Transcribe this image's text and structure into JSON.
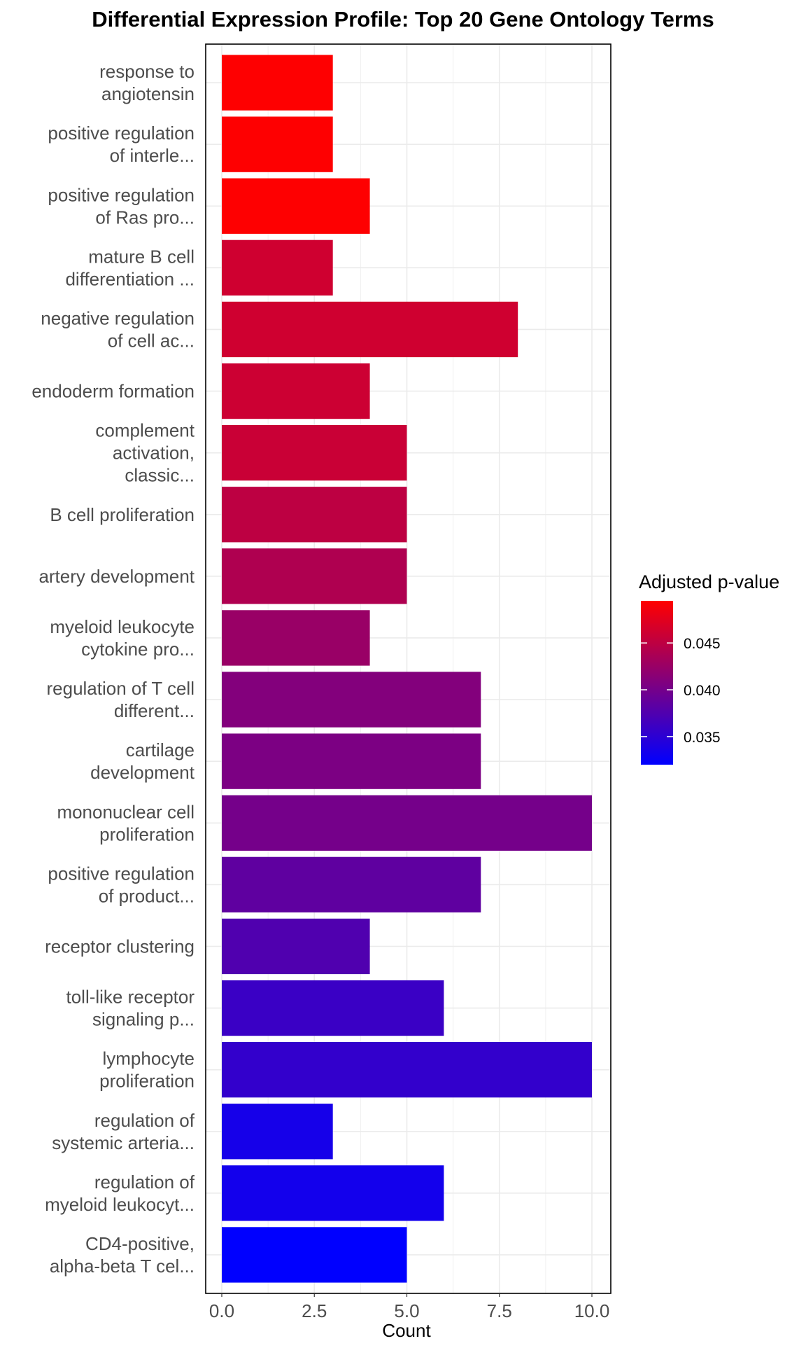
{
  "chart_data": {
    "type": "bar",
    "orientation": "horizontal",
    "title": "Differential Expression Profile: Top 20 Gene Ontology Terms",
    "xlabel": "Count",
    "ylabel": "",
    "xlim": [
      0,
      10.5
    ],
    "x_ticks": [
      0,
      2.5,
      5,
      7.5,
      10
    ],
    "x_tick_labels": [
      "0.0",
      "2.5",
      "5.0",
      "7.5",
      "10.0"
    ],
    "grid": true,
    "categories": [
      [
        "response to",
        "angiotensin"
      ],
      [
        "positive regulation",
        "of interle..."
      ],
      [
        "positive regulation",
        "of Ras pro..."
      ],
      [
        "mature B cell",
        "differentiation ..."
      ],
      [
        "negative regulation",
        "of cell ac..."
      ],
      [
        "endoderm formation"
      ],
      [
        "complement",
        "activation,",
        "classic..."
      ],
      [
        "B cell proliferation"
      ],
      [
        "artery development"
      ],
      [
        "myeloid leukocyte",
        "cytokine pro..."
      ],
      [
        "regulation of T cell",
        "different..."
      ],
      [
        "cartilage",
        "development"
      ],
      [
        "mononuclear cell",
        "proliferation"
      ],
      [
        "positive regulation",
        "of product..."
      ],
      [
        "receptor clustering"
      ],
      [
        "toll-like receptor",
        "signaling p..."
      ],
      [
        "lymphocyte",
        "proliferation"
      ],
      [
        "regulation of",
        "systemic arteria..."
      ],
      [
        "regulation of",
        "myeloid leukocyt..."
      ],
      [
        "CD4-positive,",
        "alpha-beta T cel..."
      ]
    ],
    "values": [
      3,
      3,
      4,
      3,
      8,
      4,
      5,
      5,
      5,
      4,
      7,
      7,
      10,
      7,
      4,
      6,
      10,
      3,
      6,
      5
    ],
    "adjusted_p_values": [
      0.0494,
      0.0494,
      0.0494,
      0.0462,
      0.0462,
      0.046,
      0.0458,
      0.045,
      0.044,
      0.0425,
      0.041,
      0.0405,
      0.04,
      0.0385,
      0.0375,
      0.036,
      0.0355,
      0.0335,
      0.0333,
      0.032
    ],
    "color_scale": {
      "title": "Adjusted p-value",
      "low_color": "#0000ff",
      "high_color": "#ff0000",
      "range": [
        0.032,
        0.0495
      ],
      "ticks": [
        0.045,
        0.04,
        0.035
      ],
      "tick_labels": [
        "0.045",
        "0.040",
        "0.035"
      ]
    }
  }
}
